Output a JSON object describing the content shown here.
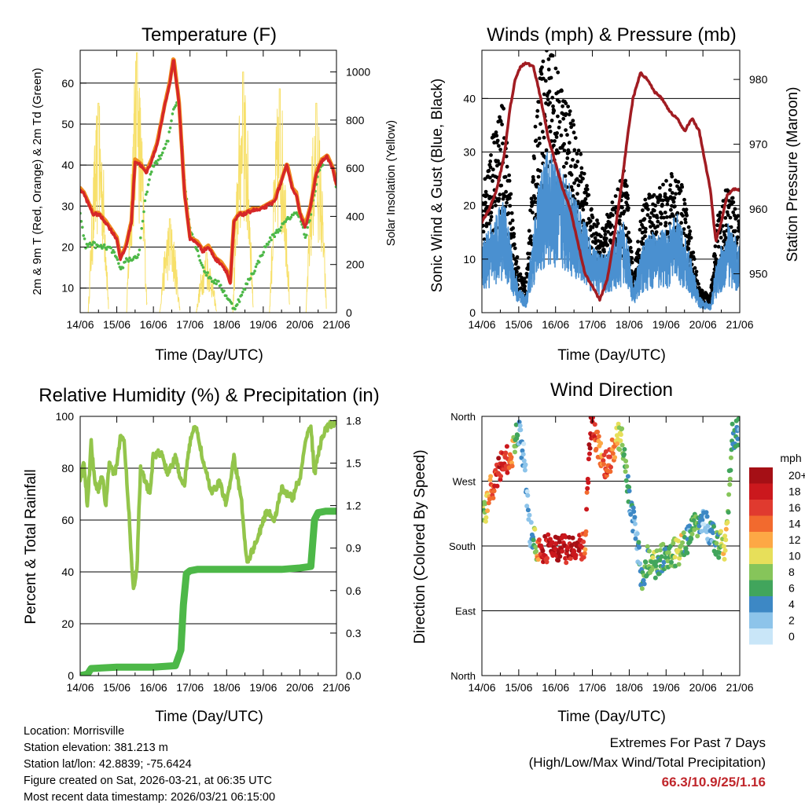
{
  "panels": {
    "temperature": {
      "title": "Temperature (F)",
      "ylabel": "2m & 9m T (Red, Orange) & 2m Td (Green)",
      "ylabel2": "Solar Insolation (Yellow)",
      "xlabel": "Time (Day/UTC)"
    },
    "winds": {
      "title": "Winds (mph) & Pressure (mb)",
      "ylabel": "Sonic Wind & Gust (Blue, Black)",
      "ylabel2": "Station Pressure (Maroon)",
      "xlabel": "Time (Day/UTC)"
    },
    "humidity": {
      "title": "Relative Humidity (%) & Precipitation (in)",
      "ylabel": "Percent & Total Rainfall",
      "xlabel": "Time (Day/UTC)"
    },
    "direction": {
      "title": "Wind Direction",
      "ylabel": "Direction (Colored By Speed)",
      "xlabel": "Time (Day/UTC)",
      "legend_title": "mph"
    }
  },
  "footer": {
    "location": "Location: Morrisville",
    "elevation": "Station elevation: 381.213 m",
    "latlon": "Station lat/lon: 42.8839; -75.6424",
    "created": "Figure created on Sat, 2026-03-21, at 06:35 UTC",
    "recent": "Most recent data timestamp: 2026/03/21 06:15:00"
  },
  "extremes": {
    "line1": "Extremes For Past 7 Days",
    "line2": "(High/Low/Max Wind/Total Precipitation)",
    "values": "66.3/10.9/25/1.16"
  },
  "colors": {
    "temp2m": "#d62728",
    "temp9m": "#f08c1e",
    "dewpoint": "#4db848",
    "solar": "#f7e06a",
    "wind": "#4a90d0",
    "gust": "#000000",
    "pressure": "#a11c22",
    "rh": "#93c54b",
    "precip": "#4db848"
  },
  "chart_data": [
    {
      "id": "temperature",
      "type": "line",
      "title": "Temperature (F)",
      "xlabel": "Time (Day/UTC)",
      "ylabel": "2m & 9m T (Red, Orange) & 2m Td (Green)",
      "ylabel_right": "Solar Insolation (Yellow)",
      "x_ticks": [
        "14/06",
        "15/06",
        "16/06",
        "17/06",
        "18/06",
        "19/06",
        "20/06",
        "21/06"
      ],
      "xlim": [
        0,
        7
      ],
      "ylim": [
        4,
        68
      ],
      "yticks": [
        10,
        20,
        30,
        40,
        50,
        60
      ],
      "ylim_right": [
        0,
        1090
      ],
      "yticks_right": [
        0,
        200,
        400,
        600,
        800,
        1000
      ],
      "series": [
        {
          "name": "2m T",
          "color": "#d62728",
          "x": [
            0,
            0.1,
            0.2,
            0.35,
            0.5,
            0.7,
            0.85,
            1.0,
            1.1,
            1.25,
            1.4,
            1.5,
            1.65,
            1.8,
            1.95,
            2.1,
            2.3,
            2.45,
            2.55,
            2.7,
            2.85,
            3.0,
            3.2,
            3.35,
            3.5,
            3.7,
            3.85,
            4.0,
            4.1,
            4.2,
            4.35,
            4.5,
            4.7,
            4.9,
            5.1,
            5.3,
            5.5,
            5.65,
            5.8,
            5.9,
            6.0,
            6.15,
            6.3,
            6.45,
            6.6,
            6.75,
            6.9,
            7.0
          ],
          "y": [
            34,
            33,
            31,
            28,
            28,
            26,
            24,
            22,
            17,
            20,
            26,
            41,
            40,
            38,
            41,
            45,
            54,
            60,
            66,
            55,
            33,
            22,
            21,
            19,
            20,
            17,
            16,
            14,
            11,
            26,
            28,
            28,
            29,
            29,
            30,
            31,
            36,
            40,
            34,
            33,
            28,
            25,
            30,
            38,
            41,
            42,
            39,
            35
          ]
        },
        {
          "name": "9m T",
          "color": "#f08c1e",
          "x": [
            0,
            0.5,
            1.0,
            1.1,
            1.5,
            2.0,
            2.55,
            3.0,
            3.5,
            4.0,
            4.1,
            4.5,
            5.0,
            5.5,
            5.65,
            6.0,
            6.5,
            6.75,
            7.0
          ],
          "y": [
            34.3,
            28.3,
            22.3,
            17.3,
            41.3,
            41.3,
            66.3,
            22.3,
            20.3,
            14.3,
            11.3,
            28.3,
            29.3,
            36.3,
            40.3,
            28.3,
            40.3,
            42.3,
            35.3
          ]
        },
        {
          "name": "2m Td",
          "color": "#4db848",
          "x": [
            0,
            0.15,
            0.3,
            0.5,
            0.7,
            0.9,
            1.0,
            1.1,
            1.25,
            1.4,
            1.6,
            1.8,
            2.0,
            2.2,
            2.4,
            2.55,
            2.7,
            2.85,
            3.0,
            3.2,
            3.4,
            3.6,
            3.8,
            4.0,
            4.2,
            4.4,
            4.6,
            4.8,
            5.0,
            5.2,
            5.4,
            5.6,
            5.8,
            6.0,
            6.15,
            6.3,
            6.5,
            6.7,
            6.9,
            7.0
          ],
          "y": [
            28,
            20,
            21,
            20,
            20,
            19,
            17,
            14,
            17,
            17,
            18,
            33,
            40,
            42,
            46,
            54,
            56,
            36,
            25,
            19,
            14,
            12,
            11,
            8,
            5,
            8,
            12,
            15,
            19,
            22,
            24,
            26,
            28,
            28,
            22,
            28,
            38,
            42,
            40,
            34
          ]
        },
        {
          "name": "Solar",
          "color": "#f7e06a",
          "axis": "right",
          "peaks_x": [
            0.5,
            1.55,
            2.45,
            3.45,
            4.45,
            5.45,
            6.45
          ],
          "peaks_y": [
            870,
            1080,
            390,
            250,
            1000,
            930,
            870
          ]
        }
      ]
    },
    {
      "id": "winds",
      "type": "scatter",
      "title": "Winds (mph) & Pressure (mb)",
      "xlabel": "Time (Day/UTC)",
      "ylabel": "Sonic Wind & Gust (Blue, Black)",
      "ylabel_right": "Station Pressure (Maroon)",
      "x_ticks": [
        "14/06",
        "15/06",
        "16/06",
        "17/06",
        "18/06",
        "19/06",
        "20/06",
        "21/06"
      ],
      "xlim": [
        0,
        7
      ],
      "ylim": [
        0,
        49
      ],
      "yticks": [
        0,
        10,
        20,
        30,
        40
      ],
      "ylim_right": [
        944,
        984.5
      ],
      "yticks_right": [
        950,
        960,
        970,
        980
      ],
      "series": [
        {
          "name": "Sonic Wind",
          "color": "#4a90d0",
          "x": [
            0,
            0.3,
            0.6,
            0.8,
            1.0,
            1.2,
            1.5,
            1.8,
            2.0,
            2.3,
            2.6,
            2.8,
            3.0,
            3.3,
            3.6,
            3.9,
            4.1,
            4.4,
            4.7,
            5.0,
            5.3,
            5.6,
            5.9,
            6.2,
            6.4,
            6.7,
            7.0
          ],
          "y": [
            9,
            11,
            14,
            8,
            3,
            2,
            15,
            20,
            18,
            17,
            13,
            11,
            8,
            7,
            9,
            12,
            3,
            9,
            10,
            10,
            12,
            8,
            2,
            1,
            7,
            11,
            8
          ]
        },
        {
          "name": "Gust",
          "color": "#000000",
          "x": [
            0,
            0.3,
            0.6,
            0.8,
            1.0,
            1.2,
            1.5,
            1.8,
            2.0,
            2.3,
            2.6,
            2.8,
            3.0,
            3.3,
            3.6,
            3.9,
            4.1,
            4.4,
            4.7,
            5.0,
            5.3,
            5.6,
            5.9,
            6.2,
            6.4,
            6.7,
            7.0
          ],
          "y": [
            14,
            22,
            26,
            14,
            5,
            4,
            28,
            34,
            30,
            26,
            22,
            17,
            12,
            11,
            14,
            18,
            5,
            14,
            15,
            16,
            18,
            12,
            3,
            2,
            12,
            16,
            11
          ]
        },
        {
          "name": "Pressure",
          "color": "#a11c22",
          "axis": "right",
          "x": [
            0,
            0.2,
            0.4,
            0.6,
            0.75,
            0.9,
            1.05,
            1.2,
            1.4,
            1.6,
            1.8,
            2.0,
            2.2,
            2.4,
            2.6,
            2.8,
            3.0,
            3.2,
            3.4,
            3.6,
            3.8,
            3.95,
            4.1,
            4.3,
            4.5,
            4.7,
            4.9,
            5.1,
            5.3,
            5.5,
            5.7,
            5.9,
            6.0,
            6.2,
            6.35,
            6.5,
            6.65,
            6.8,
            7.0
          ],
          "y": [
            958,
            960,
            963,
            968,
            975,
            980,
            982,
            982.5,
            982,
            977,
            971,
            967,
            963,
            960,
            955,
            950,
            948,
            946,
            949,
            956,
            964,
            971,
            977,
            981,
            980,
            978,
            977,
            975,
            974,
            972,
            974,
            972,
            969,
            963,
            955,
            958,
            962,
            963,
            963
          ]
        }
      ]
    },
    {
      "id": "humidity",
      "type": "line",
      "title": "Relative Humidity (%) & Precipitation (in)",
      "xlabel": "Time (Day/UTC)",
      "ylabel": "Percent & Total Rainfall",
      "x_ticks": [
        "14/06",
        "15/06",
        "16/06",
        "17/06",
        "18/06",
        "19/06",
        "20/06",
        "21/06"
      ],
      "xlim": [
        0,
        7
      ],
      "ylim": [
        0,
        100
      ],
      "yticks": [
        0,
        20,
        40,
        60,
        80,
        100
      ],
      "ylim_right": [
        0,
        1.83
      ],
      "yticks_right": [
        "0.0",
        "0.3",
        "0.6",
        "0.9",
        "1.2",
        "1.5",
        "1.8"
      ],
      "series": [
        {
          "name": "RH",
          "color": "#93c54b",
          "x": [
            0,
            0.1,
            0.2,
            0.3,
            0.4,
            0.5,
            0.6,
            0.7,
            0.8,
            0.9,
            1.0,
            1.1,
            1.2,
            1.3,
            1.45,
            1.55,
            1.65,
            1.75,
            1.9,
            2.0,
            2.2,
            2.4,
            2.6,
            2.75,
            2.85,
            3.0,
            3.1,
            3.2,
            3.4,
            3.6,
            3.8,
            4.0,
            4.2,
            4.4,
            4.55,
            4.7,
            4.9,
            5.1,
            5.3,
            5.5,
            5.7,
            5.8,
            5.9,
            6.0,
            6.2,
            6.3,
            6.4,
            6.6,
            6.8,
            7.0
          ],
          "y": [
            75,
            82,
            65,
            90,
            74,
            72,
            78,
            65,
            84,
            78,
            80,
            93,
            90,
            70,
            33,
            42,
            80,
            76,
            70,
            85,
            86,
            78,
            84,
            76,
            74,
            90,
            96,
            94,
            80,
            70,
            75,
            66,
            84,
            68,
            44,
            48,
            55,
            64,
            60,
            72,
            70,
            68,
            73,
            75,
            94,
            96,
            78,
            92,
            97,
            97
          ]
        },
        {
          "name": "Precip",
          "color": "#4db848",
          "axis": "right",
          "x": [
            0,
            0.2,
            0.3,
            1.0,
            2.0,
            2.6,
            2.75,
            2.82,
            2.9,
            3.0,
            3.2,
            3.6,
            4.0,
            4.5,
            5.0,
            5.5,
            6.0,
            6.3,
            6.4,
            6.5,
            6.7,
            7.0
          ],
          "y": [
            0.0,
            0.01,
            0.05,
            0.06,
            0.06,
            0.07,
            0.18,
            0.5,
            0.72,
            0.74,
            0.75,
            0.75,
            0.75,
            0.75,
            0.75,
            0.75,
            0.76,
            0.77,
            1.1,
            1.15,
            1.16,
            1.16
          ]
        }
      ]
    },
    {
      "id": "direction",
      "type": "scatter",
      "title": "Wind Direction",
      "xlabel": "Time (Day/UTC)",
      "ylabel": "Direction (Colored By Speed)",
      "x_ticks": [
        "14/06",
        "15/06",
        "16/06",
        "17/06",
        "18/06",
        "19/06",
        "20/06",
        "21/06"
      ],
      "xlim": [
        0,
        7
      ],
      "ylim": [
        0,
        360
      ],
      "yticks": [
        0,
        90,
        180,
        270,
        360
      ],
      "ytick_labels": [
        "North",
        "East",
        "South",
        "West",
        "North"
      ],
      "legend": {
        "title": "mph",
        "labels": [
          "20+",
          "18",
          "16",
          "14",
          "12",
          "10",
          "8",
          "6",
          "4",
          "2",
          "0"
        ],
        "colors": [
          "#a50f15",
          "#cb181d",
          "#e03a2f",
          "#f26a2e",
          "#fda845",
          "#e7df5a",
          "#86c55a",
          "#41a55c",
          "#3d88c5",
          "#8dc4ea",
          "#c9e6f8"
        ]
      },
      "series": [
        {
          "name": "Direction",
          "x": [
            0.05,
            0.2,
            0.35,
            0.5,
            0.65,
            0.8,
            0.9,
            1.0,
            1.15,
            1.3,
            1.45,
            1.6,
            1.8,
            2.0,
            2.2,
            2.4,
            2.6,
            2.8,
            2.95,
            3.1,
            3.25,
            3.4,
            3.55,
            3.7,
            3.85,
            4.0,
            4.2,
            4.35,
            4.5,
            4.65,
            4.8,
            5.0,
            5.2,
            5.4,
            5.6,
            5.8,
            6.0,
            6.2,
            6.4,
            6.6,
            6.8,
            6.95
          ],
          "y": [
            220,
            255,
            270,
            290,
            300,
            305,
            325,
            340,
            300,
            200,
            185,
            165,
            180,
            175,
            180,
            172,
            175,
            180,
            350,
            325,
            300,
            290,
            310,
            330,
            320,
            245,
            190,
            130,
            160,
            150,
            160,
            170,
            170,
            175,
            190,
            210,
            220,
            195,
            185,
            175,
            330,
            340
          ],
          "speed": [
            8,
            12,
            16,
            18,
            16,
            14,
            8,
            4,
            2,
            2,
            8,
            18,
            18,
            20,
            18,
            18,
            20,
            14,
            20,
            16,
            12,
            16,
            14,
            10,
            8,
            4,
            2,
            6,
            6,
            8,
            6,
            6,
            8,
            10,
            4,
            8,
            2,
            4,
            6,
            10,
            6,
            4
          ]
        }
      ]
    }
  ]
}
